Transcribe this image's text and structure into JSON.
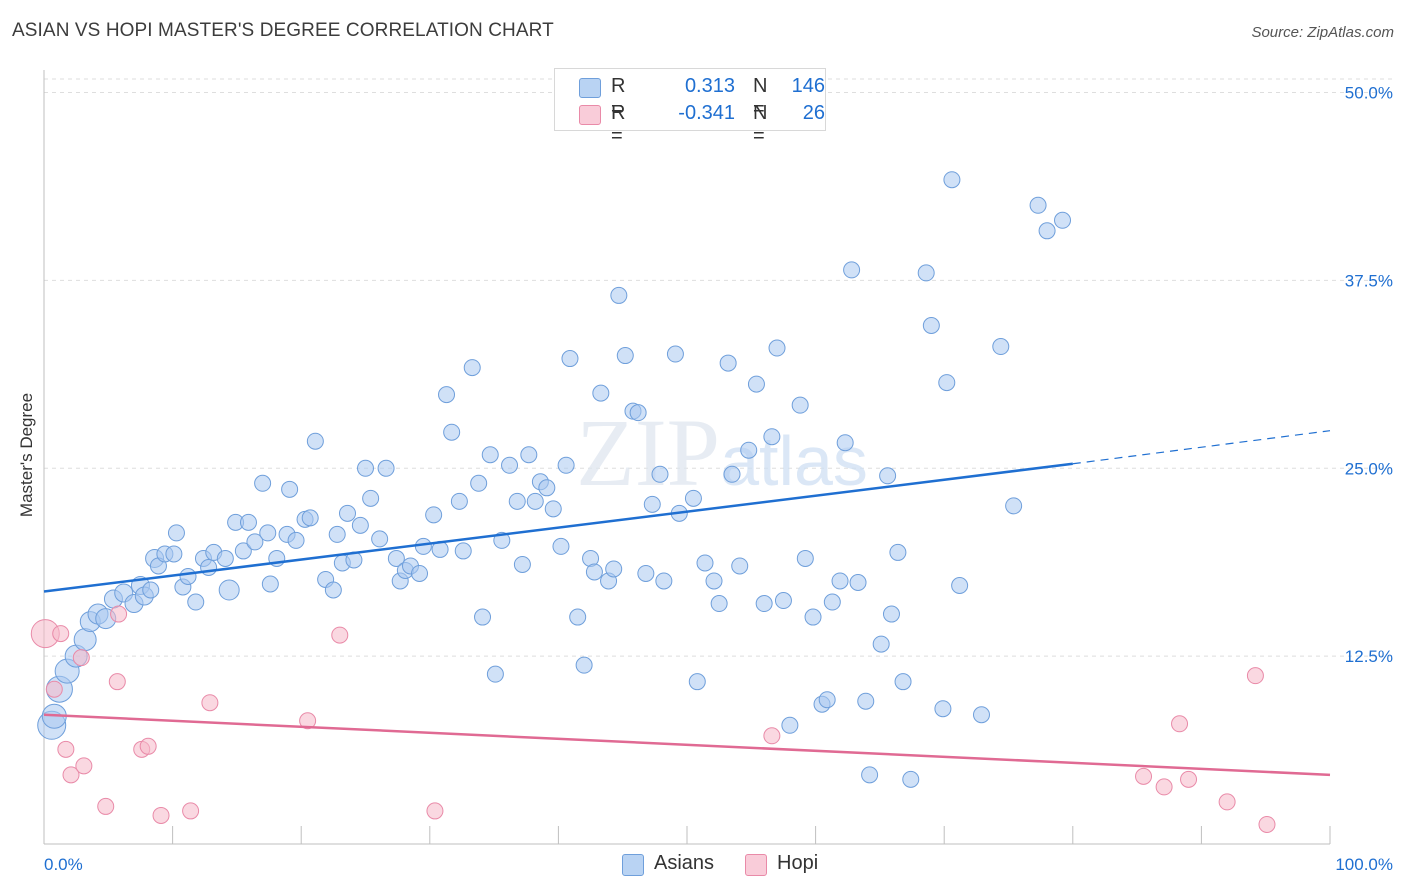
{
  "chart_data": {
    "type": "scatter",
    "title": "ASIAN VS HOPI MASTER'S DEGREE CORRELATION CHART",
    "source": "Source: ZipAtlas.com",
    "xlabel": "",
    "ylabel": "Master's Degree",
    "xlim": [
      0,
      100
    ],
    "ylim": [
      0,
      51.5
    ],
    "x_tick_labels": [
      "0.0%",
      "100.0%"
    ],
    "y_ticks": [
      12.5,
      25.0,
      37.5,
      50.0
    ],
    "y_tick_labels": [
      "12.5%",
      "25.0%",
      "37.5%",
      "50.0%"
    ],
    "watermark": "ZIPatlas",
    "legend": {
      "r_label": "R =",
      "n_label": "N =",
      "entries": [
        {
          "name": "Asians",
          "r": "0.313",
          "n": "146",
          "color": "#a9c8f0",
          "stroke": "#6f9fdb"
        },
        {
          "name": "Hopi",
          "r": "-0.341",
          "n": "26",
          "color": "#f6b8c9",
          "stroke": "#e98aa8"
        }
      ]
    },
    "series": [
      {
        "name": "Asians",
        "color": "#a9c8f0",
        "stroke": "#6f9fdb",
        "line_color": "#1f6fd1",
        "trend": {
          "x0": 0,
          "y0": 16.8,
          "x1": 80,
          "y1": 25.3,
          "dash_to_x": 100,
          "dash_to_y": 27.5
        },
        "points": [
          [
            0.6,
            7.9,
            14
          ],
          [
            0.8,
            8.5,
            12
          ],
          [
            1.2,
            10.3,
            13
          ],
          [
            1.8,
            11.5,
            12
          ],
          [
            2.5,
            12.5,
            11
          ],
          [
            3.2,
            13.6,
            11
          ],
          [
            3.6,
            14.8,
            10
          ],
          [
            4.2,
            15.3,
            10
          ],
          [
            4.8,
            15.0,
            10
          ],
          [
            5.4,
            16.3,
            9
          ],
          [
            6.2,
            16.7,
            9
          ],
          [
            7.0,
            16.0,
            9
          ],
          [
            7.5,
            17.2,
            9
          ],
          [
            7.8,
            16.5,
            9
          ],
          [
            8.3,
            16.9,
            8
          ],
          [
            8.6,
            19.0,
            9
          ],
          [
            8.9,
            18.5,
            8
          ],
          [
            9.4,
            19.3,
            8
          ],
          [
            10.1,
            19.3,
            8
          ],
          [
            10.3,
            20.7,
            8
          ],
          [
            10.8,
            17.1,
            8
          ],
          [
            11.2,
            17.8,
            8
          ],
          [
            11.8,
            16.1,
            8
          ],
          [
            12.4,
            19.0,
            8
          ],
          [
            12.8,
            18.4,
            8
          ],
          [
            13.2,
            19.4,
            8
          ],
          [
            14.1,
            19.0,
            8
          ],
          [
            14.4,
            16.9,
            10
          ],
          [
            14.9,
            21.4,
            8
          ],
          [
            15.5,
            19.5,
            8
          ],
          [
            15.9,
            21.4,
            8
          ],
          [
            16.4,
            20.1,
            8
          ],
          [
            17.0,
            24.0,
            8
          ],
          [
            17.4,
            20.7,
            8
          ],
          [
            17.6,
            17.3,
            8
          ],
          [
            18.1,
            19.0,
            8
          ],
          [
            18.9,
            20.6,
            8
          ],
          [
            19.1,
            23.6,
            8
          ],
          [
            19.6,
            20.2,
            8
          ],
          [
            20.3,
            21.6,
            8
          ],
          [
            20.7,
            21.7,
            8
          ],
          [
            21.1,
            26.8,
            8
          ],
          [
            21.9,
            17.6,
            8
          ],
          [
            22.5,
            16.9,
            8
          ],
          [
            22.8,
            20.6,
            8
          ],
          [
            23.2,
            18.7,
            8
          ],
          [
            23.6,
            22.0,
            8
          ],
          [
            24.1,
            18.9,
            8
          ],
          [
            24.6,
            21.2,
            8
          ],
          [
            25.0,
            25.0,
            8
          ],
          [
            25.4,
            23.0,
            8
          ],
          [
            26.1,
            20.3,
            8
          ],
          [
            26.6,
            25.0,
            8
          ],
          [
            27.4,
            19.0,
            8
          ],
          [
            27.7,
            17.5,
            8
          ],
          [
            28.1,
            18.2,
            8
          ],
          [
            28.5,
            18.5,
            8
          ],
          [
            29.2,
            18.0,
            8
          ],
          [
            29.5,
            19.8,
            8
          ],
          [
            30.3,
            21.9,
            8
          ],
          [
            30.8,
            19.6,
            8
          ],
          [
            31.3,
            29.9,
            8
          ],
          [
            31.7,
            27.4,
            8
          ],
          [
            32.3,
            22.8,
            8
          ],
          [
            32.6,
            19.5,
            8
          ],
          [
            33.3,
            31.7,
            8
          ],
          [
            33.8,
            24.0,
            8
          ],
          [
            34.1,
            15.1,
            8
          ],
          [
            34.7,
            25.9,
            8
          ],
          [
            35.1,
            11.3,
            8
          ],
          [
            35.6,
            20.2,
            8
          ],
          [
            36.2,
            25.2,
            8
          ],
          [
            36.8,
            22.8,
            8
          ],
          [
            37.2,
            18.6,
            8
          ],
          [
            37.7,
            25.9,
            8
          ],
          [
            38.2,
            22.8,
            8
          ],
          [
            38.6,
            24.1,
            8
          ],
          [
            39.1,
            23.7,
            8
          ],
          [
            39.6,
            22.3,
            8
          ],
          [
            40.2,
            19.8,
            8
          ],
          [
            40.6,
            25.2,
            8
          ],
          [
            40.9,
            32.3,
            8
          ],
          [
            41.5,
            15.1,
            8
          ],
          [
            42.0,
            11.9,
            8
          ],
          [
            42.5,
            19.0,
            8
          ],
          [
            42.8,
            18.1,
            8
          ],
          [
            43.3,
            30.0,
            8
          ],
          [
            43.9,
            17.5,
            8
          ],
          [
            44.3,
            18.3,
            8
          ],
          [
            44.7,
            36.5,
            8
          ],
          [
            45.2,
            32.5,
            8
          ],
          [
            45.8,
            28.8,
            8
          ],
          [
            46.2,
            28.7,
            8
          ],
          [
            46.8,
            18.0,
            8
          ],
          [
            47.3,
            22.6,
            8
          ],
          [
            47.9,
            24.6,
            8
          ],
          [
            48.2,
            17.5,
            8
          ],
          [
            49.1,
            32.6,
            8
          ],
          [
            49.4,
            22.0,
            8
          ],
          [
            50.5,
            23.0,
            8
          ],
          [
            50.8,
            10.8,
            8
          ],
          [
            51.4,
            18.7,
            8
          ],
          [
            52.1,
            17.5,
            8
          ],
          [
            52.5,
            16.0,
            8
          ],
          [
            53.2,
            32.0,
            8
          ],
          [
            53.5,
            24.6,
            8
          ],
          [
            54.1,
            18.5,
            8
          ],
          [
            54.8,
            26.2,
            8
          ],
          [
            55.4,
            30.6,
            8
          ],
          [
            56.0,
            16.0,
            8
          ],
          [
            56.6,
            27.1,
            8
          ],
          [
            57.0,
            33.0,
            8
          ],
          [
            57.5,
            16.2,
            8
          ],
          [
            58.0,
            7.9,
            8
          ],
          [
            58.8,
            29.2,
            8
          ],
          [
            59.2,
            19.0,
            8
          ],
          [
            59.8,
            15.1,
            8
          ],
          [
            60.5,
            9.3,
            8
          ],
          [
            60.9,
            9.6,
            8
          ],
          [
            61.3,
            16.1,
            8
          ],
          [
            61.9,
            17.5,
            8
          ],
          [
            62.3,
            26.7,
            8
          ],
          [
            62.8,
            38.2,
            8
          ],
          [
            63.3,
            17.4,
            8
          ],
          [
            63.9,
            9.5,
            8
          ],
          [
            64.2,
            4.6,
            8
          ],
          [
            65.1,
            13.3,
            8
          ],
          [
            65.6,
            24.5,
            8
          ],
          [
            65.9,
            15.3,
            8
          ],
          [
            66.4,
            19.4,
            8
          ],
          [
            66.8,
            10.8,
            8
          ],
          [
            67.4,
            4.3,
            8
          ],
          [
            68.6,
            38.0,
            8
          ],
          [
            69.0,
            34.5,
            8
          ],
          [
            69.9,
            9.0,
            8
          ],
          [
            70.2,
            30.7,
            8
          ],
          [
            70.6,
            44.2,
            8
          ],
          [
            71.2,
            17.2,
            8
          ],
          [
            72.9,
            8.6,
            8
          ],
          [
            74.4,
            33.1,
            8
          ],
          [
            75.4,
            22.5,
            8
          ],
          [
            77.3,
            42.5,
            8
          ],
          [
            78.0,
            40.8,
            8
          ],
          [
            79.2,
            41.5,
            8
          ]
        ]
      },
      {
        "name": "Hopi",
        "color": "#f6b8c9",
        "stroke": "#e98aa8",
        "line_color": "#e06a93",
        "trend": {
          "x0": 0,
          "y0": 8.6,
          "x1": 100,
          "y1": 4.6
        },
        "points": [
          [
            0.1,
            14.0,
            14
          ],
          [
            0.8,
            10.3,
            8
          ],
          [
            1.3,
            14.0,
            8
          ],
          [
            1.7,
            6.3,
            8
          ],
          [
            2.1,
            4.6,
            8
          ],
          [
            2.9,
            12.4,
            8
          ],
          [
            3.1,
            5.2,
            8
          ],
          [
            5.8,
            15.3,
            8
          ],
          [
            4.8,
            2.5,
            8
          ],
          [
            5.7,
            10.8,
            8
          ],
          [
            7.6,
            6.3,
            8
          ],
          [
            8.1,
            6.5,
            8
          ],
          [
            9.1,
            1.9,
            8
          ],
          [
            11.4,
            2.2,
            8
          ],
          [
            12.9,
            9.4,
            8
          ],
          [
            20.5,
            8.2,
            8
          ],
          [
            23.0,
            13.9,
            8
          ],
          [
            30.4,
            2.2,
            8
          ],
          [
            56.6,
            7.2,
            8
          ],
          [
            85.5,
            4.5,
            8
          ],
          [
            87.1,
            3.8,
            8
          ],
          [
            88.3,
            8.0,
            8
          ],
          [
            89.0,
            4.3,
            8
          ],
          [
            92.0,
            2.8,
            8
          ],
          [
            94.2,
            11.2,
            8
          ],
          [
            95.1,
            1.3,
            8
          ]
        ]
      }
    ]
  }
}
